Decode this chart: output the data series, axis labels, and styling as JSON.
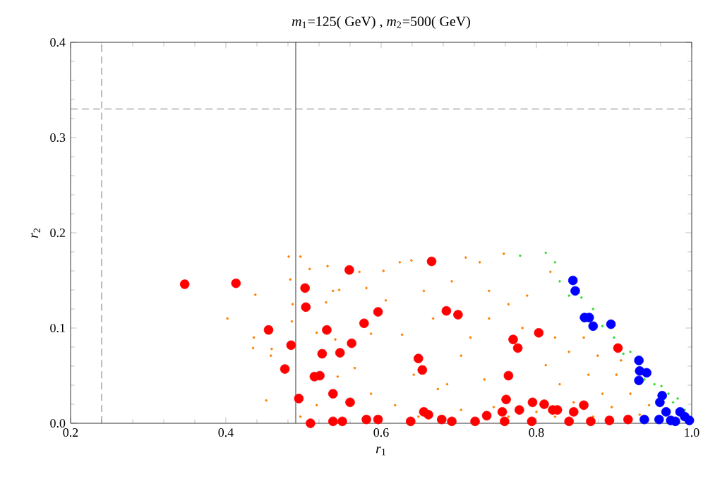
{
  "chart_data": {
    "type": "scatter",
    "title": "*m*$_{1}$=125( GeV) , *m*$_{2}$=500( GeV)",
    "xlabel": "*r*$_{1}$",
    "ylabel": "*r*$_{2}$",
    "xlim": [
      0.2,
      1.0
    ],
    "ylim": [
      0,
      0.4
    ],
    "xticks": [
      0.2,
      0.4,
      0.6,
      0.8,
      {
        "value": 1,
        "label": "1.0"
      }
    ],
    "yticks": [
      {
        "value": 0,
        "label": "0.0"
      },
      0.1,
      0.2,
      0.3,
      0.4
    ],
    "grid": false,
    "marker": "circle",
    "ref_lines": [
      {
        "axis": "x",
        "value": 0.24,
        "color": "#555555",
        "line_style": "dashed"
      },
      {
        "axis": "x",
        "value": 0.49,
        "color": "#000000",
        "line_style": "solid"
      },
      {
        "axis": "y",
        "value": 0.33,
        "color": "#555555",
        "line_style": "dashed"
      }
    ],
    "series": [
      {
        "color": "#ff8000",
        "x": [
          0.402,
          0.438,
          0.436,
          0.435,
          0.459,
          0.458,
          0.452,
          0.481,
          0.496,
          0.483,
          0.486,
          0.485,
          0.508,
          0.531,
          0.538,
          0.546,
          0.529,
          0.517,
          0.541,
          0.544,
          0.517,
          0.572,
          0.581,
          0.587,
          0.566,
          0.587,
          0.496,
          0.624,
          0.639,
          0.603,
          0.709,
          0.727,
          0.758,
          0.691,
          0.739,
          0.764,
          0.788,
          0.818,
          0.627,
          0.667,
          0.715,
          0.739,
          0.703,
          0.673,
          0.642,
          0.733,
          0.824,
          0.842,
          0.861,
          0.812,
          0.83,
          0.867,
          0.885,
          0.903,
          0.921,
          0.945,
          0.897,
          0.848,
          0.8,
          0.745,
          0.703,
          0.618,
          0.648,
          0.909,
          0.879,
          0.606,
          0.655,
          0.782,
          0.685,
          0.764,
          0.824,
          0.873,
          0.933
        ],
        "values": [
          0.11,
          0.135,
          0.09,
          0.079,
          0.078,
          0.071,
          0.024,
          0.175,
          0.175,
          0.151,
          0.125,
          0.107,
          0.162,
          0.165,
          0.139,
          0.14,
          0.127,
          0.095,
          0.088,
          0.049,
          0.019,
          0.159,
          0.142,
          0.094,
          0.058,
          0.031,
          0.007,
          0.169,
          0.171,
          0.16,
          0.174,
          0.169,
          0.178,
          0.149,
          0.139,
          0.125,
          0.134,
          0.159,
          0.093,
          0.11,
          0.09,
          0.11,
          0.071,
          0.036,
          0.051,
          0.046,
          0.09,
          0.075,
          0.09,
          0.061,
          0.041,
          0.051,
          0.031,
          0.051,
          0.031,
          0.019,
          0.017,
          0.022,
          0.012,
          0.017,
          0.014,
          0.019,
          0.007,
          0.066,
          0.071,
          0.129,
          0.139,
          0.1,
          0.041,
          0.007,
          0.007,
          0.007,
          0.009
        ]
      },
      {
        "color": "#33dd33",
        "x": [
          0.779,
          0.812,
          0.824,
          0.83,
          0.842,
          0.858,
          0.873,
          0.885,
          0.9,
          0.912,
          0.921,
          0.939,
          0.952,
          0.961,
          0.976,
          0.982,
          0.991,
          0.97
        ],
        "values": [
          0.176,
          0.179,
          0.169,
          0.149,
          0.134,
          0.132,
          0.12,
          0.102,
          0.09,
          0.073,
          0.075,
          0.046,
          0.041,
          0.039,
          0.022,
          0.026,
          0.014,
          0.031
        ]
      },
      {
        "color": "#ff0000",
        "x": [
          0.347,
          0.413,
          0.455,
          0.484,
          0.476,
          0.502,
          0.503,
          0.494,
          0.509,
          0.53,
          0.524,
          0.514,
          0.521,
          0.538,
          0.547,
          0.562,
          0.559,
          0.578,
          0.596,
          0.56,
          0.538,
          0.55,
          0.581,
          0.596,
          0.665,
          0.684,
          0.699,
          0.77,
          0.776,
          0.803,
          0.905,
          0.648,
          0.653,
          0.764,
          0.761,
          0.778,
          0.795,
          0.81,
          0.821,
          0.827,
          0.848,
          0.861,
          0.655,
          0.661,
          0.638,
          0.678,
          0.691,
          0.721,
          0.736,
          0.756,
          0.759,
          0.794,
          0.842,
          0.87,
          0.894,
          0.918
        ],
        "values": [
          0.146,
          0.147,
          0.098,
          0.082,
          0.057,
          0.142,
          0.122,
          0.026,
          0.0,
          0.098,
          0.073,
          0.049,
          0.05,
          0.031,
          0.074,
          0.084,
          0.161,
          0.105,
          0.117,
          0.022,
          0.002,
          0.002,
          0.004,
          0.004,
          0.17,
          0.118,
          0.114,
          0.088,
          0.079,
          0.095,
          0.079,
          0.068,
          0.056,
          0.05,
          0.025,
          0.014,
          0.022,
          0.02,
          0.014,
          0.014,
          0.012,
          0.019,
          0.012,
          0.009,
          0.002,
          0.004,
          0.002,
          0.002,
          0.008,
          0.012,
          0.002,
          0.002,
          0.002,
          0.002,
          0.003,
          0.004
        ]
      },
      {
        "color": "#0000ff",
        "x": [
          0.847,
          0.85,
          0.862,
          0.868,
          0.873,
          0.896,
          0.932,
          0.933,
          0.942,
          0.932,
          0.962,
          0.959,
          0.967,
          0.985,
          0.991,
          0.958,
          0.973,
          0.997,
          0.939,
          0.979
        ],
        "values": [
          0.15,
          0.139,
          0.111,
          0.111,
          0.102,
          0.104,
          0.066,
          0.055,
          0.053,
          0.045,
          0.029,
          0.022,
          0.012,
          0.012,
          0.007,
          0.004,
          0.003,
          0.003,
          0.004,
          0.002
        ]
      }
    ]
  }
}
